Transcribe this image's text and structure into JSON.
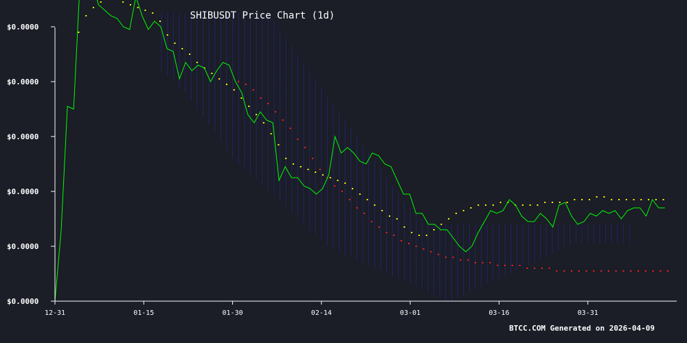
{
  "chart_data": {
    "type": "line",
    "title": "SHIBUSDT Price Chart (1d)",
    "xlabel": "",
    "ylabel": "",
    "x_tick_labels": [
      "12-31",
      "01-15",
      "01-30",
      "02-14",
      "03-01",
      "03-16",
      "03-31"
    ],
    "y_tick_labels": [
      "$0.0000",
      "$0.0000",
      "$0.0000",
      "$0.0000",
      "$0.0000",
      "$0.0000"
    ],
    "ylim": [
      0,
      5
    ],
    "grid": false,
    "legend": "none",
    "colors": {
      "background": "#1b1d27",
      "price": "#00ff00",
      "parabolic_sar": "#ffff00",
      "moving_average": "#ff2020",
      "bands": "#2a2aa0",
      "axis": "#ffffff"
    },
    "price": [
      0.0,
      1.3,
      3.55,
      3.5,
      5.75,
      6.0,
      5.8,
      5.4,
      5.3,
      5.2,
      5.15,
      5.0,
      4.95,
      5.55,
      5.2,
      4.95,
      5.1,
      5.0,
      4.6,
      4.55,
      4.05,
      4.35,
      4.2,
      4.3,
      4.25,
      4.0,
      4.2,
      4.35,
      4.3,
      4.0,
      3.8,
      3.4,
      3.25,
      3.45,
      3.3,
      3.25,
      2.2,
      2.45,
      2.25,
      2.25,
      2.1,
      2.05,
      1.95,
      2.05,
      2.3,
      3.0,
      2.7,
      2.8,
      2.7,
      2.55,
      2.5,
      2.7,
      2.65,
      2.5,
      2.45,
      2.2,
      1.95,
      1.95,
      1.6,
      1.6,
      1.4,
      1.4,
      1.3,
      1.3,
      1.15,
      1.0,
      0.9,
      1.0,
      1.25,
      1.45,
      1.65,
      1.6,
      1.65,
      1.85,
      1.75,
      1.55,
      1.45,
      1.45,
      1.6,
      1.5,
      1.35,
      1.75,
      1.8,
      1.55,
      1.4,
      1.45,
      1.6,
      1.55,
      1.65,
      1.6,
      1.65,
      1.5,
      1.65,
      1.7,
      1.7,
      1.55,
      1.85,
      1.7,
      1.7
    ],
    "parabolic_sar": [
      4.9,
      5.2,
      5.35,
      5.45,
      5.5,
      5.55,
      5.45,
      5.4,
      5.35,
      5.3,
      5.25,
      5.1,
      4.85,
      4.7,
      4.6,
      4.5,
      4.35,
      4.25,
      4.15,
      4.05,
      3.95,
      3.85,
      3.7,
      3.55,
      3.4,
      3.25,
      3.05,
      2.85,
      2.6,
      2.5,
      2.45,
      2.4,
      2.35,
      2.3,
      2.25,
      2.2,
      2.15,
      2.05,
      1.95,
      1.85,
      1.75,
      1.65,
      1.55,
      1.5,
      1.35,
      1.25,
      1.2,
      1.2,
      1.3,
      1.4,
      1.5,
      1.6,
      1.65,
      1.7,
      1.75,
      1.75,
      1.75,
      1.8,
      1.8,
      1.75,
      1.75,
      1.75,
      1.75,
      1.8,
      1.8,
      1.8,
      1.8,
      1.85,
      1.85,
      1.85,
      1.9,
      1.9,
      1.85,
      1.85,
      1.85,
      1.85,
      1.85,
      1.85,
      1.85,
      1.85
    ],
    "moving_average": [
      4.0,
      3.95,
      3.85,
      3.7,
      3.6,
      3.45,
      3.3,
      3.15,
      2.95,
      2.8,
      2.6,
      2.4,
      2.25,
      2.1,
      2.0,
      1.85,
      1.7,
      1.6,
      1.45,
      1.35,
      1.25,
      1.2,
      1.1,
      1.05,
      1.0,
      0.95,
      0.9,
      0.85,
      0.8,
      0.8,
      0.75,
      0.75,
      0.7,
      0.7,
      0.7,
      0.65,
      0.65,
      0.65,
      0.65,
      0.6,
      0.6,
      0.6,
      0.6,
      0.55,
      0.55,
      0.55,
      0.55,
      0.55,
      0.55,
      0.55,
      0.55,
      0.55,
      0.55,
      0.55,
      0.55,
      0.55,
      0.55,
      0.55,
      0.55,
      0.55
    ],
    "band_upper": [
      6.3,
      6.3,
      6.25,
      6.25,
      6.2,
      6.15,
      6.1,
      6.05,
      6.0,
      5.95,
      5.9,
      5.85,
      5.8,
      5.7,
      5.6,
      5.5,
      5.4,
      5.3,
      5.2,
      5.1,
      4.95,
      4.8,
      4.65,
      4.5,
      4.35,
      4.2,
      4.05,
      3.9,
      3.75,
      3.6,
      3.45,
      3.3,
      3.15,
      3.0,
      2.85,
      2.7,
      2.55,
      2.4,
      2.25,
      2.1,
      1.95,
      1.8,
      1.7,
      1.6,
      1.5,
      1.45,
      1.4,
      1.4,
      1.4,
      1.4,
      1.4,
      1.4,
      1.4,
      1.4,
      1.4,
      1.4,
      1.4,
      1.4,
      1.4,
      1.4,
      1.4,
      1.4,
      1.4,
      1.4,
      1.4,
      1.4,
      1.4,
      1.4,
      1.4,
      1.4,
      1.4,
      1.4,
      1.4,
      1.4,
      1.4,
      1.4,
      1.4,
      1.4,
      1.4,
      1.4
    ],
    "band_lower": [
      4.2,
      4.1,
      4.0,
      3.9,
      3.8,
      3.65,
      3.5,
      3.35,
      3.2,
      3.05,
      2.9,
      2.75,
      2.6,
      2.5,
      2.4,
      2.3,
      2.2,
      2.1,
      2.0,
      1.9,
      1.8,
      1.7,
      1.6,
      1.5,
      1.4,
      1.3,
      1.2,
      1.1,
      1.0,
      0.95,
      0.9,
      0.85,
      0.8,
      0.75,
      0.7,
      0.65,
      0.6,
      0.55,
      0.5,
      0.45,
      0.4,
      0.35,
      0.3,
      0.25,
      0.2,
      0.15,
      0.1,
      0.05,
      0.0,
      0.0,
      0.05,
      0.1,
      0.15,
      0.2,
      0.25,
      0.3,
      0.35,
      0.4,
      0.45,
      0.5,
      0.55,
      0.6,
      0.65,
      0.7,
      0.75,
      0.8,
      0.85,
      0.9,
      0.95,
      1.0,
      1.05,
      1.05,
      1.05,
      1.05,
      1.05,
      1.05,
      1.05,
      1.05,
      1.05,
      1.05
    ]
  },
  "footer": "BTCC.COM Generated on 2026-04-09"
}
